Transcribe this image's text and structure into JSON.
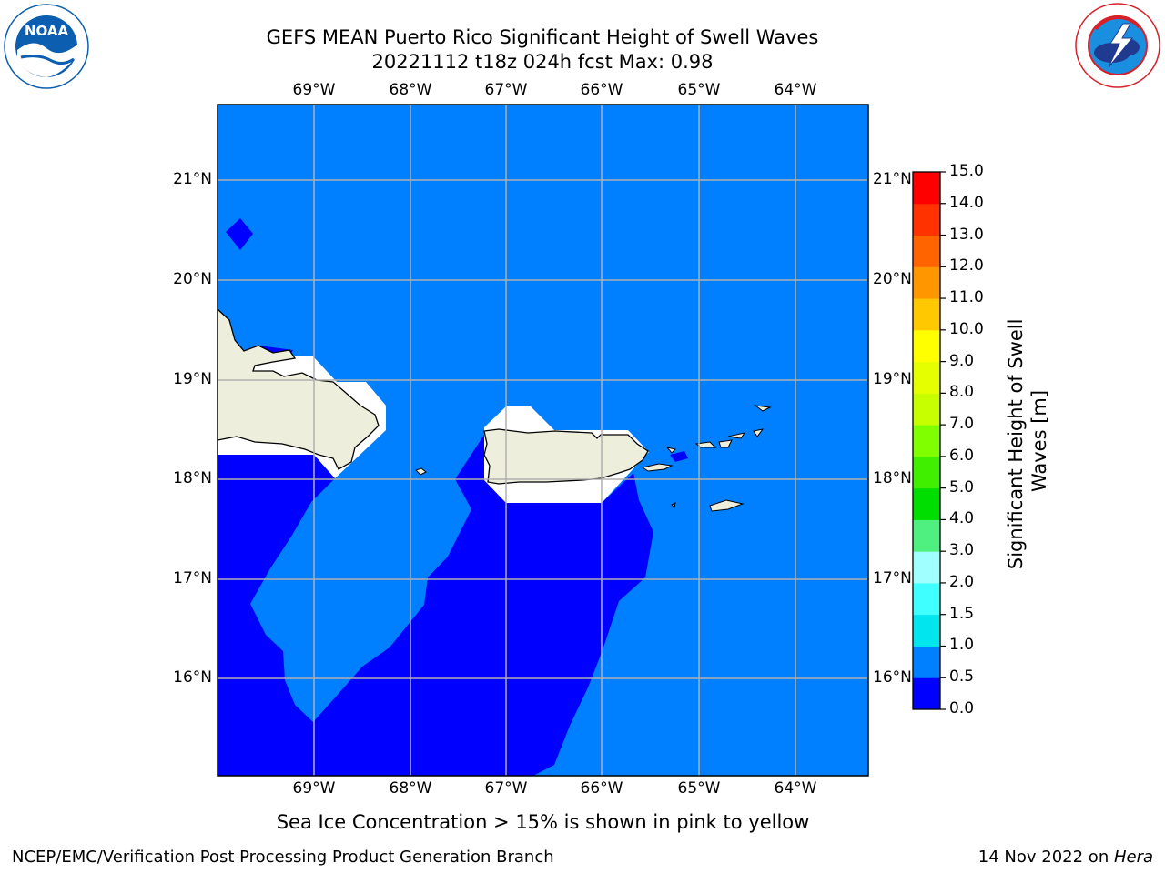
{
  "header": {
    "title_line1": "GEFS MEAN Puerto Rico Significant Height of Swell Waves",
    "title_line2": "20221112 t18z 024h fcst   Max: 0.98"
  },
  "logos": {
    "left": {
      "text": "NOAA",
      "ring_text": "NATIONAL OCEANIC AND ATMOSPHERIC ADMINISTRATION · U.S. DEPARTMENT OF COMMERCE",
      "color": "#0b5eb0"
    },
    "right": {
      "ring_text": "NATIONAL WEATHER SERVICE",
      "color": "#d6212a"
    }
  },
  "map": {
    "lon_labels": [
      "69°W",
      "68°W",
      "67°W",
      "66°W",
      "65°W",
      "64°W"
    ],
    "lat_labels": [
      "21°N",
      "20°N",
      "19°N",
      "18°N",
      "17°N",
      "16°N"
    ],
    "colors": {
      "ocean_0_0_5": "#0000ff",
      "ocean_0_5_1_0": "#0080ff",
      "land": "#eeeedd",
      "gridline": "#b0b0b0"
    }
  },
  "colorbar": {
    "label": "Significant Height of Swell Waves [m]",
    "label_line1": "Significant Height of Swell",
    "label_line2": "Waves [m]",
    "ticks": [
      "0.0",
      "0.5",
      "1.0",
      "1.5",
      "2.0",
      "3.0",
      "4.0",
      "5.0",
      "6.0",
      "7.0",
      "8.0",
      "9.0",
      "10.0",
      "11.0",
      "12.0",
      "13.0",
      "14.0",
      "15.0"
    ],
    "colors": [
      "#0000ff",
      "#0080ff",
      "#00e5ee",
      "#40ffff",
      "#a0ffff",
      "#50f080",
      "#00dd00",
      "#40ee00",
      "#80ff00",
      "#c8ff00",
      "#e6ff00",
      "#ffff00",
      "#ffc800",
      "#ff9600",
      "#ff6400",
      "#ff3200",
      "#ff0000"
    ]
  },
  "caption": "Sea Ice Concentration > 15% is shown in pink to yellow",
  "footer": {
    "left": "NCEP/EMC/Verification Post Processing Product Generation Branch",
    "right_prefix": "14 Nov 2022 on ",
    "right_host": "Hera"
  }
}
